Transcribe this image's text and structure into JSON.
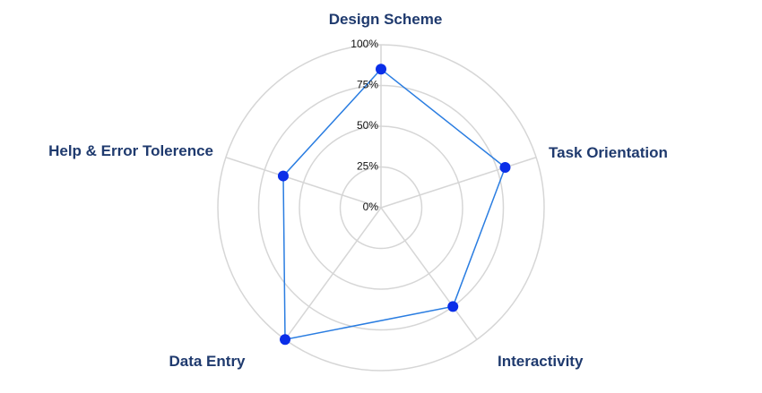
{
  "chart_data": {
    "type": "radar",
    "categories": [
      "Design Scheme",
      "Task Orientation",
      "Interactivity",
      "Data Entry",
      "Help & Error Tolerence"
    ],
    "series": [
      {
        "values": [
          85,
          80,
          75,
          100,
          63
        ]
      }
    ],
    "radial_ticks": [
      "0%",
      "25%",
      "50%",
      "75%",
      "100%"
    ],
    "rlim": [
      0,
      100
    ],
    "grid": true,
    "colors": {
      "line": "#2a7de1",
      "point": "#0a2ee8",
      "grid": "#d6d6d6",
      "label": "#1f3a6e"
    }
  }
}
